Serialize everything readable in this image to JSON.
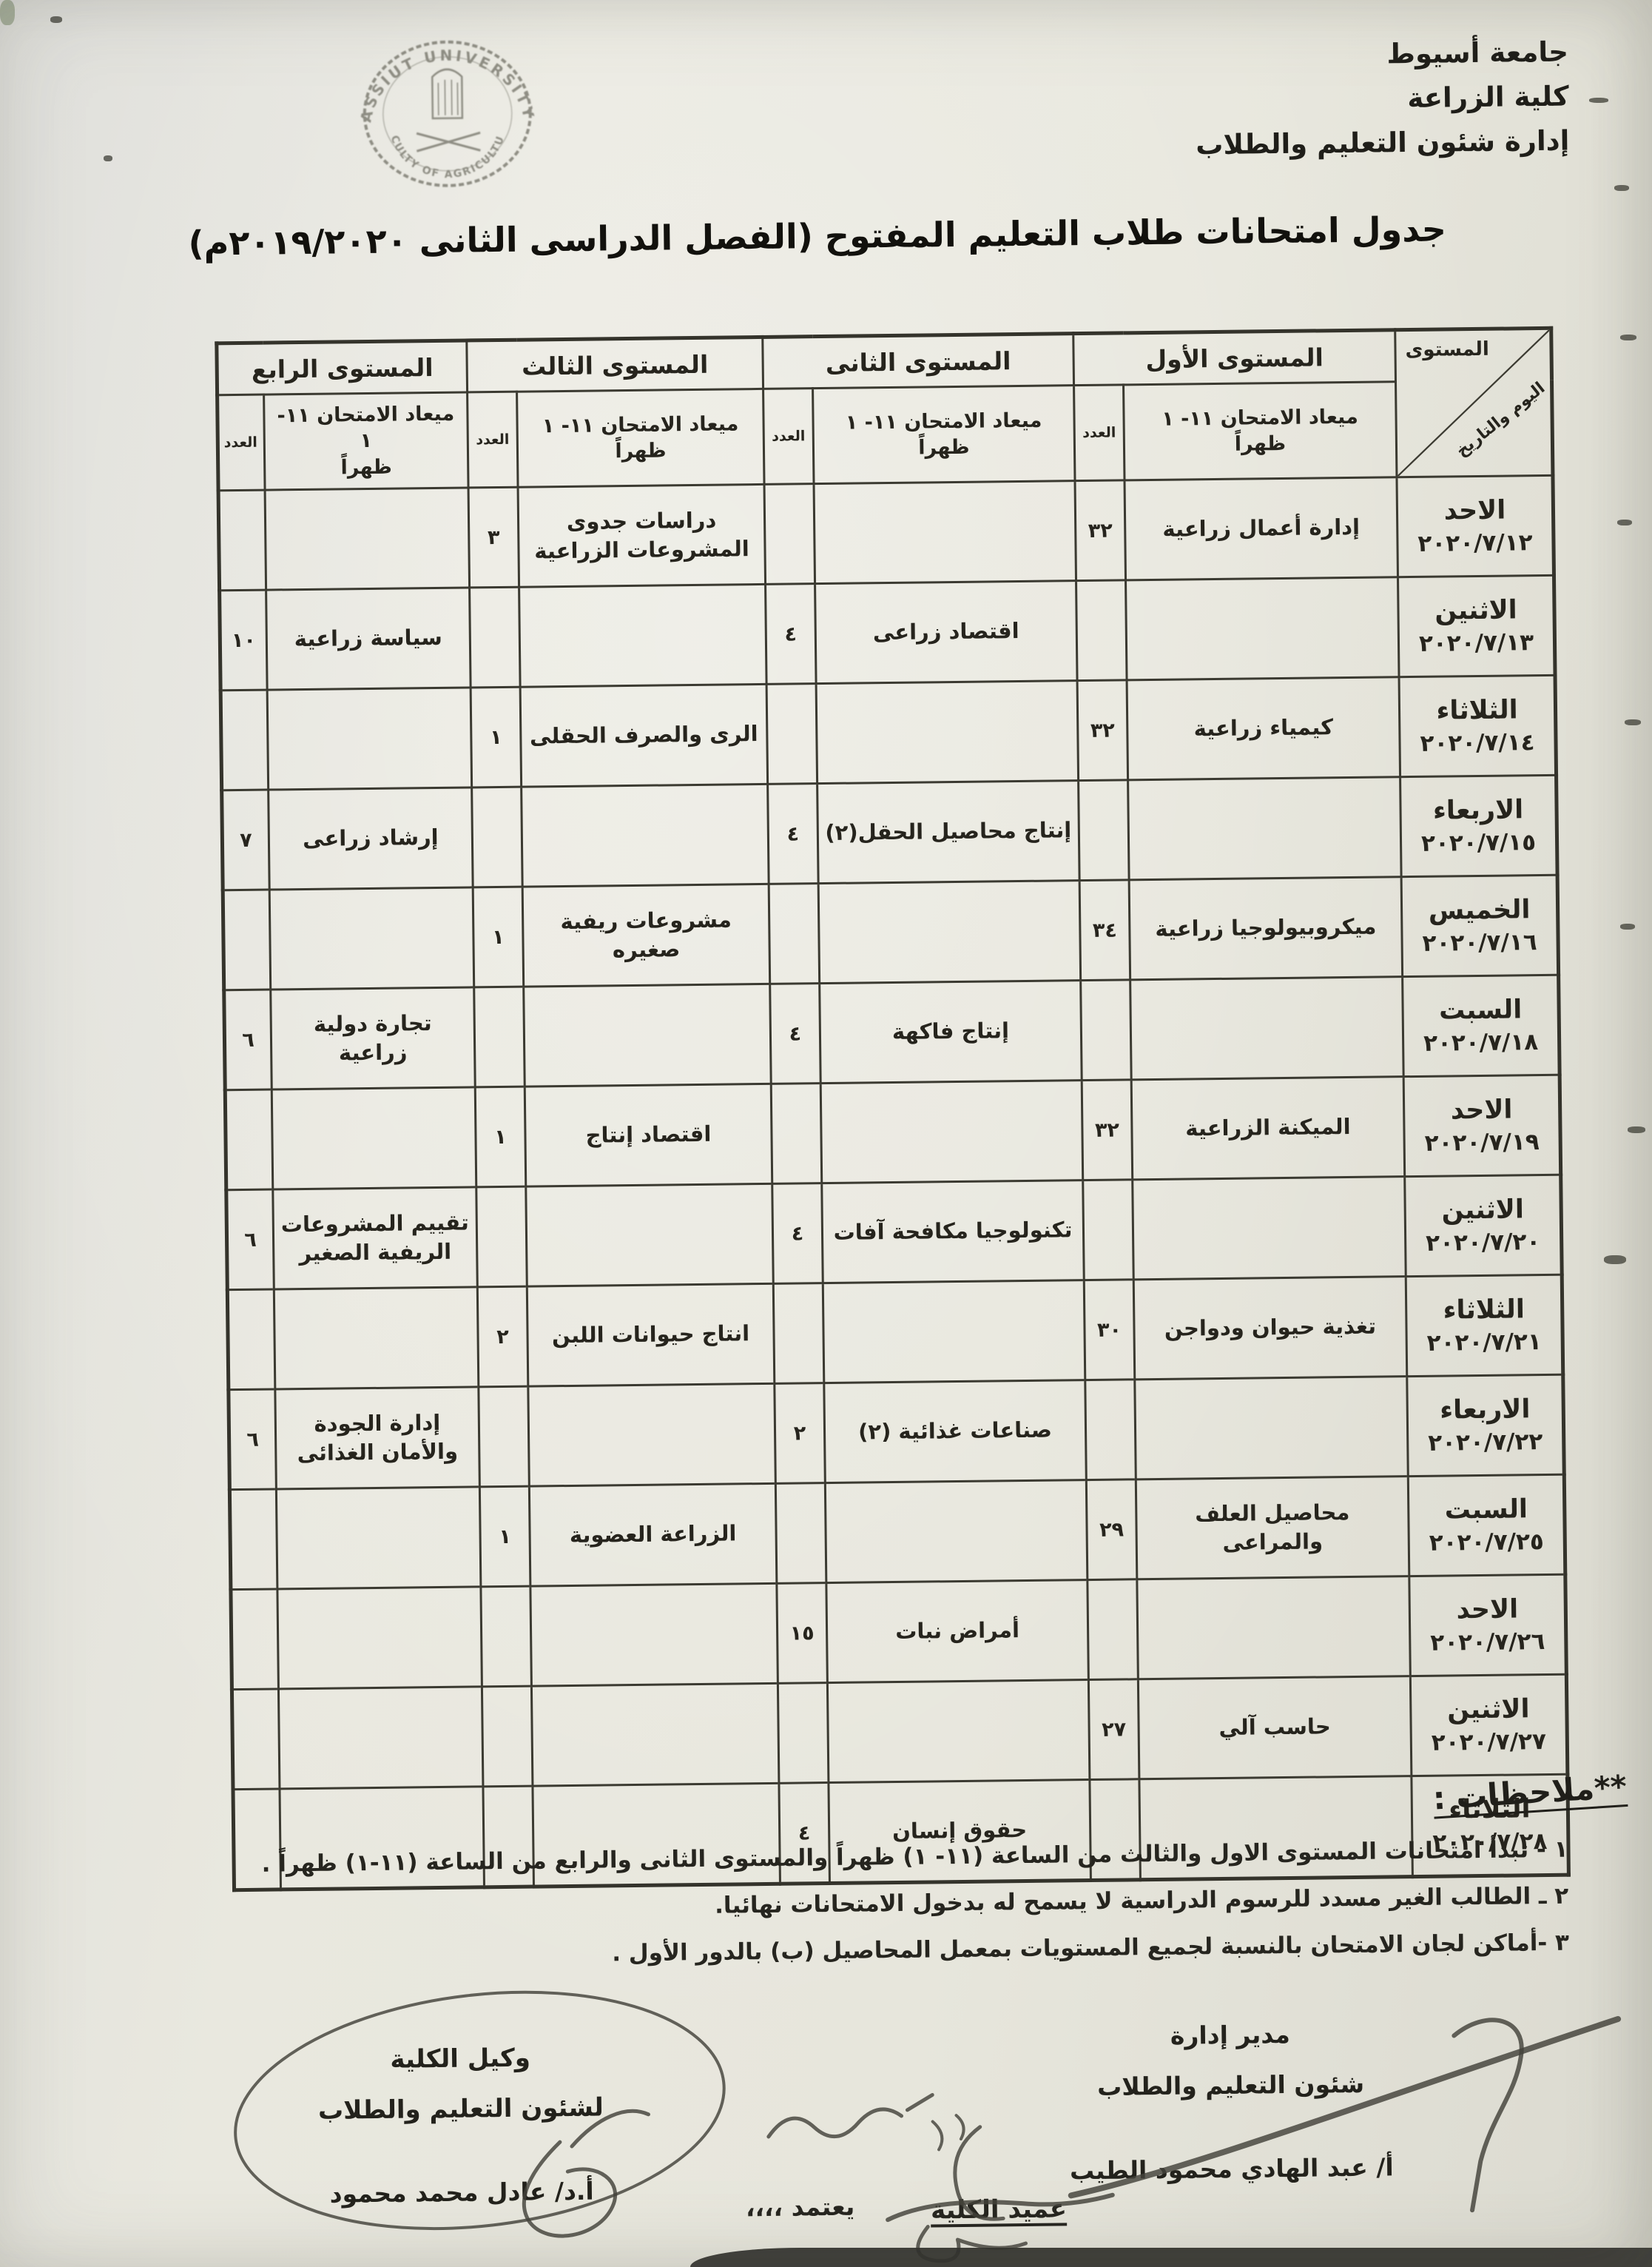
{
  "org": {
    "line1": "جامعة أسيوط",
    "line2": "كلية الزراعة",
    "line3": "إدارة شئون التعليم والطلاب"
  },
  "stamp": {
    "arc_top": "ASSIUT UNIVERSITY",
    "arc_bottom": "FACULTY OF AGRICULTURE"
  },
  "title": "جدول امتحانات طلاب التعليم المفتوح (الفصل الدراسى الثانى ٢٠١٩/٢٠٢٠م)",
  "table": {
    "corner": {
      "level_label": "المستوى",
      "day_date_label": "اليوم والتاريخ"
    },
    "level_headers": [
      "المستوى الأول",
      "المستوى الثانى",
      "المستوى الثالث",
      "المستوى الرابع"
    ],
    "sub_headers": {
      "time_line1": "ميعاد الامتحان ١١- ١",
      "time_line2": "ظهراً",
      "count": "العدد"
    },
    "rows": [
      {
        "day": "الاحد",
        "date": "٢٠٢٠/٧/١٢",
        "l1": {
          "exam": "إدارة أعمال زراعية",
          "count": "٣٢"
        },
        "l2": {
          "exam": "",
          "count": ""
        },
        "l3": {
          "exam": "دراسات جدوى المشروعات الزراعية",
          "count": "٣"
        },
        "l4": {
          "exam": "",
          "count": ""
        }
      },
      {
        "day": "الاثنين",
        "date": "٢٠٢٠/٧/١٣",
        "l1": {
          "exam": "",
          "count": ""
        },
        "l2": {
          "exam": "اقتصاد زراعى",
          "count": "٤"
        },
        "l3": {
          "exam": "",
          "count": ""
        },
        "l4": {
          "exam": "سياسة زراعية",
          "count": "١٠"
        }
      },
      {
        "day": "الثلاثاء",
        "date": "٢٠٢٠/٧/١٤",
        "l1": {
          "exam": "كيمياء زراعية",
          "count": "٣٢"
        },
        "l2": {
          "exam": "",
          "count": ""
        },
        "l3": {
          "exam": "الرى والصرف الحقلى",
          "count": "١"
        },
        "l4": {
          "exam": "",
          "count": ""
        }
      },
      {
        "day": "الاربعاء",
        "date": "٢٠٢٠/٧/١٥",
        "l1": {
          "exam": "",
          "count": ""
        },
        "l2": {
          "exam": "إنتاج محاصيل الحقل(٢)",
          "count": "٤"
        },
        "l3": {
          "exam": "",
          "count": ""
        },
        "l4": {
          "exam": "إرشاد زراعى",
          "count": "٧"
        }
      },
      {
        "day": "الخميس",
        "date": "٢٠٢٠/٧/١٦",
        "l1": {
          "exam": "ميكروبيولوجيا زراعية",
          "count": "٣٤"
        },
        "l2": {
          "exam": "",
          "count": ""
        },
        "l3": {
          "exam": "مشروعات ريفية صغيره",
          "count": "١"
        },
        "l4": {
          "exam": "",
          "count": ""
        }
      },
      {
        "day": "السبت",
        "date": "٢٠٢٠/٧/١٨",
        "l1": {
          "exam": "",
          "count": ""
        },
        "l2": {
          "exam": "إنتاج فاكهة",
          "count": "٤"
        },
        "l3": {
          "exam": "",
          "count": ""
        },
        "l4": {
          "exam": "تجارة دولية زراعية",
          "count": "٦"
        }
      },
      {
        "day": "الاحد",
        "date": "٢٠٢٠/٧/١٩",
        "l1": {
          "exam": "الميكنة الزراعية",
          "count": "٣٢"
        },
        "l2": {
          "exam": "",
          "count": ""
        },
        "l3": {
          "exam": "اقتصاد إنتاج",
          "count": "١"
        },
        "l4": {
          "exam": "",
          "count": ""
        }
      },
      {
        "day": "الاثنين",
        "date": "٢٠٢٠/٧/٢٠",
        "l1": {
          "exam": "",
          "count": ""
        },
        "l2": {
          "exam": "تكنولوجيا مكافحة آفات",
          "count": "٤"
        },
        "l3": {
          "exam": "",
          "count": ""
        },
        "l4": {
          "exam": "تقييم المشروعات الريفية الصغير",
          "count": "٦"
        }
      },
      {
        "day": "الثلاثاء",
        "date": "٢٠٢٠/٧/٢١",
        "l1": {
          "exam": "تغذية حيوان ودواجن",
          "count": "٣٠"
        },
        "l2": {
          "exam": "",
          "count": ""
        },
        "l3": {
          "exam": "انتاج حيوانات اللبن",
          "count": "٢"
        },
        "l4": {
          "exam": "",
          "count": ""
        }
      },
      {
        "day": "الاربعاء",
        "date": "٢٠٢٠/٧/٢٢",
        "l1": {
          "exam": "",
          "count": ""
        },
        "l2": {
          "exam": "صناعات غذائية (٢)",
          "count": "٢"
        },
        "l3": {
          "exam": "",
          "count": ""
        },
        "l4": {
          "exam": "إدارة الجودة والأمان الغذائى",
          "count": "٦"
        }
      },
      {
        "day": "السبت",
        "date": "٢٠٢٠/٧/٢٥",
        "l1": {
          "exam": "محاصيل العلف والمراعى",
          "count": "٢٩"
        },
        "l2": {
          "exam": "",
          "count": ""
        },
        "l3": {
          "exam": "الزراعة العضوية",
          "count": "١"
        },
        "l4": {
          "exam": "",
          "count": ""
        }
      },
      {
        "day": "الاحد",
        "date": "٢٠٢٠/٧/٢٦",
        "l1": {
          "exam": "",
          "count": ""
        },
        "l2": {
          "exam": "أمراض نبات",
          "count": "١٥"
        },
        "l3": {
          "exam": "",
          "count": ""
        },
        "l4": {
          "exam": "",
          "count": ""
        }
      },
      {
        "day": "الاثنين",
        "date": "٢٠٢٠/٧/٢٧",
        "l1": {
          "exam": "حاسب آلي",
          "count": "٢٧"
        },
        "l2": {
          "exam": "",
          "count": ""
        },
        "l3": {
          "exam": "",
          "count": ""
        },
        "l4": {
          "exam": "",
          "count": ""
        }
      },
      {
        "day": "الثلاثاء",
        "date": "٢٠٢٠/٧/٢٨",
        "l1": {
          "exam": "",
          "count": ""
        },
        "l2": {
          "exam": "حقوق إنسان",
          "count": "٤"
        },
        "l3": {
          "exam": "",
          "count": ""
        },
        "l4": {
          "exam": "",
          "count": ""
        }
      }
    ]
  },
  "notes": {
    "heading": "**ملاحظات :",
    "items": [
      "١ - تبدأ امتحانات المستوى الاول والثالث من الساعة (١١- ١) ظهراً والمستوى الثانى والرابع من الساعة (١١-١) ظهراً .",
      "٢ ـ الطالب الغير مسدد للرسوم الدراسية لا يسمح له بدخول الامتحانات نهائيا.",
      "٣ -أماكن لجان الامتحان بالنسبة لجميع المستويات بمعمل المحاصيل (ب) بالدور الأول ."
    ]
  },
  "signatures": {
    "right": {
      "line1": "مدير إدارة",
      "line2": "شئون التعليم والطلاب",
      "name": "أ/ عبد الهادي محمود الطيب"
    },
    "left": {
      "line1": "وكيل الكلية",
      "line2": "لشئون التعليم والطلاب",
      "name": "أ.د/ عادل محمد محمود"
    },
    "approval": {
      "word": "يعتمد ،،،،",
      "dean": "عميد الكلية"
    }
  }
}
